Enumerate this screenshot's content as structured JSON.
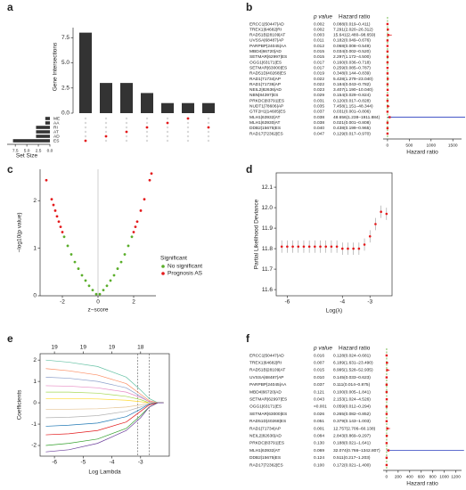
{
  "chart_data": [
    {
      "panel": "a",
      "type": "upset",
      "ylabel": "Gene Intersections",
      "xlabel": "Set Size",
      "values": [
        8,
        3,
        3,
        2,
        1,
        1,
        1
      ],
      "color": "#333333",
      "dot_color": "#e41a1c",
      "ylim": [
        0,
        8.5
      ],
      "yticks": [
        {
          "value": 0,
          "label": "0.0"
        },
        2.5,
        {
          "value": 5,
          "label": "5.0"
        },
        7.5
      ],
      "sets": [
        "ME",
        "AA",
        "RI",
        "AT",
        "AD",
        "ES"
      ],
      "set_sizes": [
        1,
        1,
        3,
        3,
        3,
        8
      ],
      "intersection_sets": [
        5,
        4,
        3,
        2,
        1,
        0,
        2
      ],
      "xlim": [
        0,
        8.5
      ],
      "xticks": [
        7.5,
        {
          "value": 5,
          "label": "5.0"
        },
        2.5,
        {
          "value": 0,
          "label": "0.0"
        }
      ]
    },
    {
      "panel": "b",
      "type": "forest",
      "p_header": "p value",
      "hr_header": "Hazard ratio",
      "xlabel": "Hazard ratio",
      "ci_color": "#e41a1c",
      "ref_color": "#5aae2a",
      "refline": 1,
      "xlim": [
        -100,
        1700
      ],
      "xticks": [
        0,
        500,
        1000,
        1500
      ],
      "rows": [
        {
          "name": "ERCC1|50447|AD",
          "p": "0.002",
          "label": "0.088(0.019–0.411)",
          "hr": 0.088,
          "lo": 0.019,
          "hi": 0.411
        },
        {
          "name": "TREX1|64682|RI",
          "p": "0.002",
          "label": "7.291(2.020–26.312)",
          "hr": 7.291,
          "lo": 2.02,
          "hi": 26.312
        },
        {
          "name": "RAD51B|28109|AT",
          "p": "0.003",
          "label": "15.641(2.480–98.659)",
          "hr": 15.641,
          "lo": 2.48,
          "hi": 98.659
        },
        {
          "name": "UVSSA|68487|AP",
          "p": "0.011",
          "label": "0.182(0.049–0.676)",
          "hr": 0.182,
          "lo": 0.049,
          "hi": 0.676
        },
        {
          "name": "PARPBP|24045|AA",
          "p": "0.012",
          "label": "0.068(0.008–0.549)",
          "hr": 0.068,
          "lo": 0.008,
          "hi": 0.549
        },
        {
          "name": "MBD4|66720|AD",
          "p": "0.015",
          "label": "0.034(0.002–0.520)",
          "hr": 0.034,
          "lo": 0.002,
          "hi": 0.52
        },
        {
          "name": "SETMAR|62997|ES",
          "p": "0.015",
          "label": "2.297(1.172–4.500)",
          "hr": 2.297,
          "lo": 1.172,
          "hi": 4.5
        },
        {
          "name": "OGG1|63171|ES",
          "p": "0.017",
          "label": "0.160(0.036–0.718)",
          "hr": 0.16,
          "lo": 0.036,
          "hi": 0.718
        },
        {
          "name": "SETMAR|63000|ES",
          "p": "0.017",
          "label": "0.259(0.085–0.787)",
          "hr": 0.259,
          "lo": 0.085,
          "hi": 0.787
        },
        {
          "name": "RAD51D|40268|ES",
          "p": "0.019",
          "label": "0.348(0.144–0.839)",
          "hr": 0.348,
          "lo": 0.144,
          "hi": 0.839
        },
        {
          "name": "RAD1|71734|AP",
          "p": "0.022",
          "label": "5.428(1.279–23.040)",
          "hr": 5.428,
          "lo": 1.279,
          "hi": 23.04
        },
        {
          "name": "RAD1|71736|AP",
          "p": "0.022",
          "label": "0.184(0.043–0.782)",
          "hr": 0.184,
          "lo": 0.043,
          "hi": 0.782
        },
        {
          "name": "NEIL2|82636|AD",
          "p": "0.023",
          "label": "3.407(1.190–10.040)",
          "hr": 3.407,
          "lo": 1.19,
          "hi": 10.04
        },
        {
          "name": "NBN|84397|ES",
          "p": "0.029",
          "label": "0.154(0.029–0.824)",
          "hr": 0.154,
          "lo": 0.029,
          "hi": 0.824
        },
        {
          "name": "PRKDC|83791|ES",
          "p": "0.031",
          "label": "0.120(0.017–0.828)",
          "hr": 0.12,
          "lo": 0.017,
          "hi": 0.828
        },
        {
          "name": "NUDT1|78606|AP",
          "p": "0.035",
          "label": "7.458(1.151–48.344)",
          "hr": 7.458,
          "lo": 1.151,
          "hi": 48.344
        },
        {
          "name": "GTF2H1|14605|ES",
          "p": "0.037",
          "label": "0.031(0.001–0.806)",
          "hr": 0.031,
          "lo": 0.001,
          "hi": 0.806
        },
        {
          "name": "MLH1|63932|AT",
          "p": "0.038",
          "label": "48.656(1.238–1911.884)",
          "hr": 48.656,
          "lo": 1.238,
          "hi": 1911.884,
          "color": "#2b3fbf"
        },
        {
          "name": "MLH1|63930|AT",
          "p": "0.038",
          "label": "0.021(0.001–0.808)",
          "hr": 0.021,
          "lo": 0.001,
          "hi": 0.808
        },
        {
          "name": "DDB2|15675|ES",
          "p": "0.040",
          "label": "0.438(0.199–0.965)",
          "hr": 0.438,
          "lo": 0.199,
          "hi": 0.965
        },
        {
          "name": "RAD17|72362|ES",
          "p": "0.047",
          "label": "0.129(0.017–0.970)",
          "hr": 0.129,
          "lo": 0.017,
          "hi": 0.97
        }
      ]
    },
    {
      "panel": "c",
      "type": "scatter",
      "xlabel": "z−score",
      "ylabel": "−log10(p value)",
      "legend_title": "Significant",
      "xlim": [
        -3.25,
        3.25
      ],
      "xticks": [
        -2,
        0,
        2
      ],
      "ylim": [
        0,
        2.66
      ],
      "yticks": [
        0,
        1,
        2
      ],
      "series": [
        {
          "name": "No significant",
          "color": "#5aae2a",
          "x": [
            -1.9,
            -1.7,
            -1.5,
            -1.3,
            -1.1,
            -0.9,
            -0.7,
            -0.5,
            -0.3,
            -0.1,
            0.1,
            0.3,
            0.5,
            0.7,
            0.9,
            1.1,
            1.3,
            1.5,
            1.7,
            1.9
          ],
          "y": [
            1.24,
            1.05,
            0.87,
            0.71,
            0.57,
            0.43,
            0.32,
            0.21,
            0.12,
            0.035,
            0.035,
            0.12,
            0.21,
            0.32,
            0.43,
            0.57,
            0.71,
            0.87,
            1.05,
            1.24
          ]
        },
        {
          "name": "Prognosis AS",
          "color": "#e41a1c",
          "x": [
            -2.9,
            -2.6,
            -2.5,
            -2.4,
            -2.3,
            -2.2,
            -2.1,
            -2.0,
            2.0,
            2.1,
            2.2,
            2.4,
            2.6,
            2.9,
            3.0
          ],
          "y": [
            2.43,
            2.03,
            1.91,
            1.79,
            1.67,
            1.56,
            1.45,
            1.34,
            1.34,
            1.45,
            1.56,
            1.79,
            2.03,
            2.43,
            2.57
          ]
        }
      ]
    },
    {
      "panel": "d",
      "type": "line",
      "xlabel": "Log(λ)",
      "ylabel": "Partial Likelihood Deviance",
      "color": "#e41a1c",
      "err_color": "#999999",
      "xlim": [
        -6.4,
        -2.2
      ],
      "xticks": [
        -6,
        -4,
        -3
      ],
      "ylim": [
        11.57,
        12.17
      ],
      "yticks": [
        11.6,
        11.7,
        11.8,
        11.9,
        {
          "value": 12,
          "label": "12.0"
        },
        12.1
      ],
      "x": [
        -6.2,
        -6.0,
        -5.8,
        -5.6,
        -5.4,
        -5.2,
        -5.0,
        -4.8,
        -4.6,
        -4.4,
        -4.2,
        -4.0,
        -3.8,
        -3.6,
        -3.4,
        -3.2,
        -3.0,
        -2.8,
        -2.6,
        -2.4
      ],
      "values": [
        11.81,
        11.81,
        11.81,
        11.81,
        11.81,
        11.81,
        11.81,
        11.81,
        11.81,
        11.81,
        11.81,
        11.8,
        11.8,
        11.8,
        11.8,
        11.82,
        11.86,
        11.92,
        11.98,
        11.97
      ],
      "err": [
        0.03,
        0.03,
        0.03,
        0.03,
        0.03,
        0.03,
        0.03,
        0.03,
        0.03,
        0.03,
        0.03,
        0.03,
        0.03,
        0.03,
        0.03,
        0.03,
        0.03,
        0.03,
        0.03,
        0.03
      ]
    },
    {
      "panel": "e",
      "type": "lasso",
      "xlabel": "Log Lambda",
      "ylabel": "Coefficients",
      "xlim": [
        -6.5,
        -2.0
      ],
      "xticks": [
        -6,
        -5,
        -4,
        -3
      ],
      "ylim": [
        -2.5,
        2.3
      ],
      "yticks": [
        -2,
        -1,
        0,
        1,
        2
      ],
      "top_ticks": [
        {
          "value": -6,
          "label": "19"
        },
        {
          "value": -5,
          "label": "19"
        },
        {
          "value": -4,
          "label": "19"
        },
        {
          "value": -3,
          "label": "18"
        }
      ],
      "vlines": [
        -3.1,
        -2.7
      ],
      "x": [
        -6.3,
        -5.5,
        -4.5,
        -3.5,
        -3.0,
        -2.7,
        -2.4,
        -2.2
      ],
      "series": [
        {
          "color": "#66c2a5",
          "values": [
            2.0,
            1.9,
            1.7,
            1.2,
            0.6,
            0.2,
            0,
            0
          ]
        },
        {
          "color": "#fc8d62",
          "values": [
            1.6,
            1.5,
            1.3,
            0.9,
            0.4,
            0.1,
            0,
            0
          ]
        },
        {
          "color": "#8da0cb",
          "values": [
            1.2,
            1.15,
            1.0,
            0.7,
            0.3,
            0.05,
            0,
            0
          ]
        },
        {
          "color": "#e78ac3",
          "values": [
            0.8,
            0.78,
            0.7,
            0.5,
            0.25,
            0.05,
            0,
            0
          ]
        },
        {
          "color": "#a6d854",
          "values": [
            0.5,
            0.5,
            0.45,
            0.3,
            0.15,
            0,
            0,
            0
          ]
        },
        {
          "color": "#ffd92f",
          "values": [
            0.2,
            0.2,
            0.18,
            0.12,
            0.05,
            0,
            0,
            0
          ]
        },
        {
          "color": "#e5c494",
          "values": [
            -0.3,
            -0.3,
            -0.28,
            -0.2,
            -0.1,
            0,
            0,
            0
          ]
        },
        {
          "color": "#b3b3b3",
          "values": [
            -0.7,
            -0.68,
            -0.6,
            -0.4,
            -0.2,
            -0.05,
            0,
            0
          ]
        },
        {
          "color": "#1f78b4",
          "values": [
            -1.1,
            -1.05,
            -0.95,
            -0.65,
            -0.3,
            -0.05,
            0,
            0
          ]
        },
        {
          "color": "#e31a1c",
          "values": [
            -1.5,
            -1.45,
            -1.3,
            -0.9,
            -0.4,
            -0.1,
            0,
            0
          ]
        },
        {
          "color": "#33a02c",
          "values": [
            -2.0,
            -1.9,
            -1.7,
            -1.2,
            -0.6,
            -0.2,
            0,
            0
          ]
        },
        {
          "color": "#6a3d9a",
          "values": [
            -2.3,
            -2.2,
            -1.9,
            -1.3,
            -0.7,
            -0.2,
            0,
            0
          ]
        }
      ]
    },
    {
      "panel": "f",
      "type": "forest",
      "p_header": "p value",
      "hr_header": "Hazard ratio",
      "xlabel": "Hazard ratio",
      "ci_color": "#e41a1c",
      "ref_color": "#5aae2a",
      "refline": 1,
      "xlim": [
        -60,
        1300
      ],
      "xticks": [
        0,
        200,
        400,
        600,
        800,
        1000,
        1200
      ],
      "rows": [
        {
          "name": "ERCC1|50447|AD",
          "p": "0.016",
          "label": "0.128(0.024–0.681)",
          "hr": 0.128,
          "lo": 0.024,
          "hi": 0.681
        },
        {
          "name": "TREX1|64682|RI",
          "p": "0.007",
          "label": "6.189(1.631–23.490)",
          "hr": 6.189,
          "lo": 1.631,
          "hi": 23.49
        },
        {
          "name": "RAD51B|28109|AT",
          "p": "0.015",
          "label": "8.995(1.528–52.935)",
          "hr": 8.995,
          "lo": 1.528,
          "hi": 52.935
        },
        {
          "name": "UVSSA|68487|AP",
          "p": "0.010",
          "label": "0.145(0.033–0.623)",
          "hr": 0.145,
          "lo": 0.033,
          "hi": 0.623
        },
        {
          "name": "PARPBP|24045|AA",
          "p": "0.037",
          "label": "0.111(0.014–0.875)",
          "hr": 0.111,
          "lo": 0.014,
          "hi": 0.875
        },
        {
          "name": "MBD4|66720|AD",
          "p": "0.121",
          "label": "0.100(0.005–1.841)",
          "hr": 0.1,
          "lo": 0.005,
          "hi": 1.841
        },
        {
          "name": "SETMAR|62997|ES",
          "p": "0.043",
          "label": "2.153(1.024–4.526)",
          "hr": 2.153,
          "lo": 1.024,
          "hi": 4.526
        },
        {
          "name": "OGG1|63171|ES",
          "p": "<0.001",
          "label": "0.059(0.012–0.294)",
          "hr": 0.059,
          "lo": 0.012,
          "hi": 0.294
        },
        {
          "name": "SETMAR|63000|ES",
          "p": "0.026",
          "label": "0.265(0.082–0.852)",
          "hr": 0.265,
          "lo": 0.082,
          "hi": 0.852
        },
        {
          "name": "RAD51D|40268|ES",
          "p": "0.051",
          "label": "0.379(0.143–1.003)",
          "hr": 0.379,
          "lo": 0.143,
          "hi": 1.003
        },
        {
          "name": "RAD1|71734|AP",
          "p": "0.001",
          "label": "12.757(2.706–60.138)",
          "hr": 12.757,
          "lo": 2.706,
          "hi": 60.138
        },
        {
          "name": "NEIL2|82636|AD",
          "p": "0.084",
          "label": "2.843(0.869–9.297)",
          "hr": 2.843,
          "lo": 0.869,
          "hi": 9.297
        },
        {
          "name": "PRKDC|83791|ES",
          "p": "0.130",
          "label": "0.188(0.021–1.641)",
          "hr": 0.188,
          "lo": 0.021,
          "hi": 1.641
        },
        {
          "name": "MLH1|63932|AT",
          "p": "0.069",
          "label": "32.074(0.766–1342.807)",
          "hr": 32.074,
          "lo": 0.766,
          "hi": 1342.807,
          "color": "#2b3fbf"
        },
        {
          "name": "DDB2|15675|ES",
          "p": "0.124",
          "label": "0.511(0.217–1.203)",
          "hr": 0.511,
          "lo": 0.217,
          "hi": 1.203
        },
        {
          "name": "RAD17|72362|ES",
          "p": "0.100",
          "label": "0.172(0.021–1.400)",
          "hr": 0.172,
          "lo": 0.021,
          "hi": 1.4
        }
      ]
    }
  ]
}
